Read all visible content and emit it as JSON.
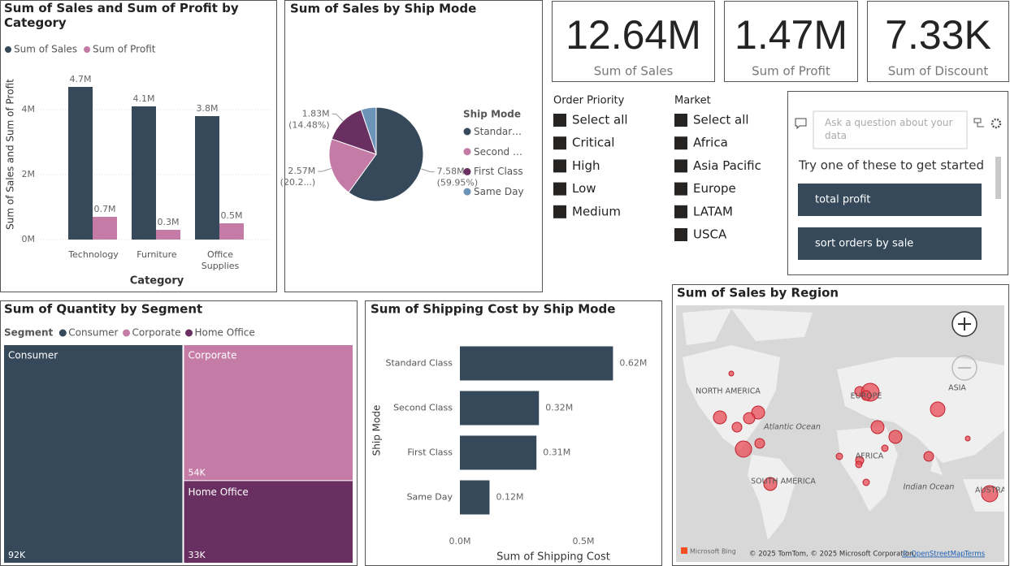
{
  "chart_data": [
    {
      "type": "bar",
      "title": "Sum of Sales and Sum of Profit by Category",
      "x_label": "Category",
      "y_label": "Sum of Sales and Sum of Profit",
      "categories": [
        "Technology",
        "Furniture",
        "Office Supplies"
      ],
      "series": [
        {
          "name": "Sum of Sales",
          "color": "#35495b",
          "values": [
            4700000,
            4100000,
            3800000
          ],
          "value_labels": [
            "4.7M",
            "4.1M",
            "3.8M"
          ]
        },
        {
          "name": "Sum of Profit",
          "color": "#c47ba6",
          "values": [
            700000,
            300000,
            500000
          ],
          "value_labels": [
            "0.7M",
            "0.3M",
            "0.5M"
          ]
        }
      ],
      "ylim": [
        0,
        5000000
      ],
      "yticks": [
        {
          "value": 0,
          "label": "0M"
        },
        {
          "value": 2000000,
          "label": "2M"
        },
        {
          "value": 4000000,
          "label": "4M"
        }
      ],
      "grid": true,
      "legend": "top-left"
    },
    {
      "type": "pie",
      "title": "Sum of Sales by Ship Mode",
      "legend_title": "Ship Mode",
      "categories": [
        "Standard Class",
        "Second Class",
        "First Class",
        "Same Day"
      ],
      "values": [
        7580000,
        2570000,
        1830000,
        660000
      ],
      "value_labels": [
        "7.58M",
        "2.57M",
        "1.83M",
        null
      ],
      "percent_labels": [
        "(59.95%)",
        "(20.2...)",
        "(14.48%)",
        null
      ],
      "colors": [
        "#35495b",
        "#c47ba6",
        "#6a2f61",
        "#6c93b8"
      ],
      "legend": "right"
    },
    {
      "type": "treemap",
      "title": "Sum of Quantity by Segment",
      "legend_title": "Segment",
      "categories": [
        "Consumer",
        "Corporate",
        "Home Office"
      ],
      "values": [
        92000,
        54000,
        33000
      ],
      "value_labels": [
        "92K",
        "54K",
        "33K"
      ],
      "colors": [
        "#35495b",
        "#c47ba6",
        "#6a2f61"
      ],
      "legend": "top-left"
    },
    {
      "type": "bar",
      "orientation": "horizontal",
      "title": "Sum of Shipping Cost by Ship Mode",
      "x_label": "Sum of Shipping Cost",
      "y_label": "Ship Mode",
      "categories": [
        "Standard Class",
        "Second Class",
        "First Class",
        "Same Day"
      ],
      "values": [
        620000,
        320000,
        310000,
        120000
      ],
      "value_labels": [
        "0.62M",
        "0.32M",
        "0.31M",
        "0.12M"
      ],
      "color": "#35495b",
      "xlim": [
        0,
        770000
      ],
      "xticks": [
        {
          "value": 0,
          "label": "0.0M"
        },
        {
          "value": 500000,
          "label": "0.5M"
        }
      ],
      "grid": false
    }
  ],
  "cards": [
    {
      "value": "12.64M",
      "label": "Sum of Sales"
    },
    {
      "value": "1.47M",
      "label": "Sum of Profit"
    },
    {
      "value": "7.33K",
      "label": "Sum of Discount"
    }
  ],
  "slicers": [
    {
      "title": "Order Priority",
      "items": [
        "Select all",
        "Critical",
        "High",
        "Low",
        "Medium"
      ]
    },
    {
      "title": "Market",
      "items": [
        "Select all",
        "Africa",
        "Asia Pacific",
        "Europe",
        "LATAM",
        "USCA"
      ]
    }
  ],
  "qa": {
    "placeholder": "Ask a question about your data",
    "prompt": "Try one of these to get started",
    "suggestions": [
      "total profit",
      "sort orders by sale"
    ]
  },
  "map": {
    "title": "Sum of Sales by Region",
    "labels": [
      "NORTH AMERICA",
      "EUROPE",
      "ASIA",
      "Atlantic Ocean",
      "AFRICA",
      "SOUTH AMERICA",
      "Indian Ocean",
      "AUSTRALIA"
    ],
    "logo": "Microsoft Bing",
    "attribution": "© 2025 TomTom, © 2025 Microsoft Corporation,",
    "osm": "© OpenStreetMap",
    "terms": "Terms"
  }
}
